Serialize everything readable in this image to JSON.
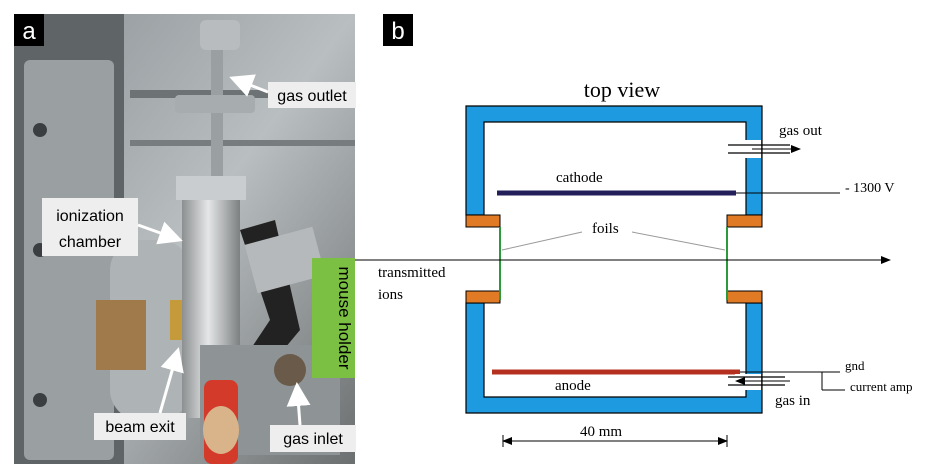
{
  "panels": {
    "a": {
      "label": "a",
      "labels": {
        "gas_outlet": "gas outlet",
        "ionization_chamber": [
          "ionization",
          "chamber"
        ],
        "mouse_holder": "mouse holder",
        "beam_exit": "beam exit",
        "gas_inlet": "gas inlet"
      }
    },
    "b": {
      "label": "b",
      "title": "top view",
      "labels": {
        "gas_out": "gas out",
        "cathode": "cathode",
        "voltage": "- 1300 V",
        "foils": "foils",
        "transmitted_ions": [
          "transmitted",
          "ions"
        ],
        "gnd": "gnd",
        "current_amp": "current amp",
        "anode": "anode",
        "gas_in": "gas in",
        "scale": "40 mm"
      }
    }
  }
}
